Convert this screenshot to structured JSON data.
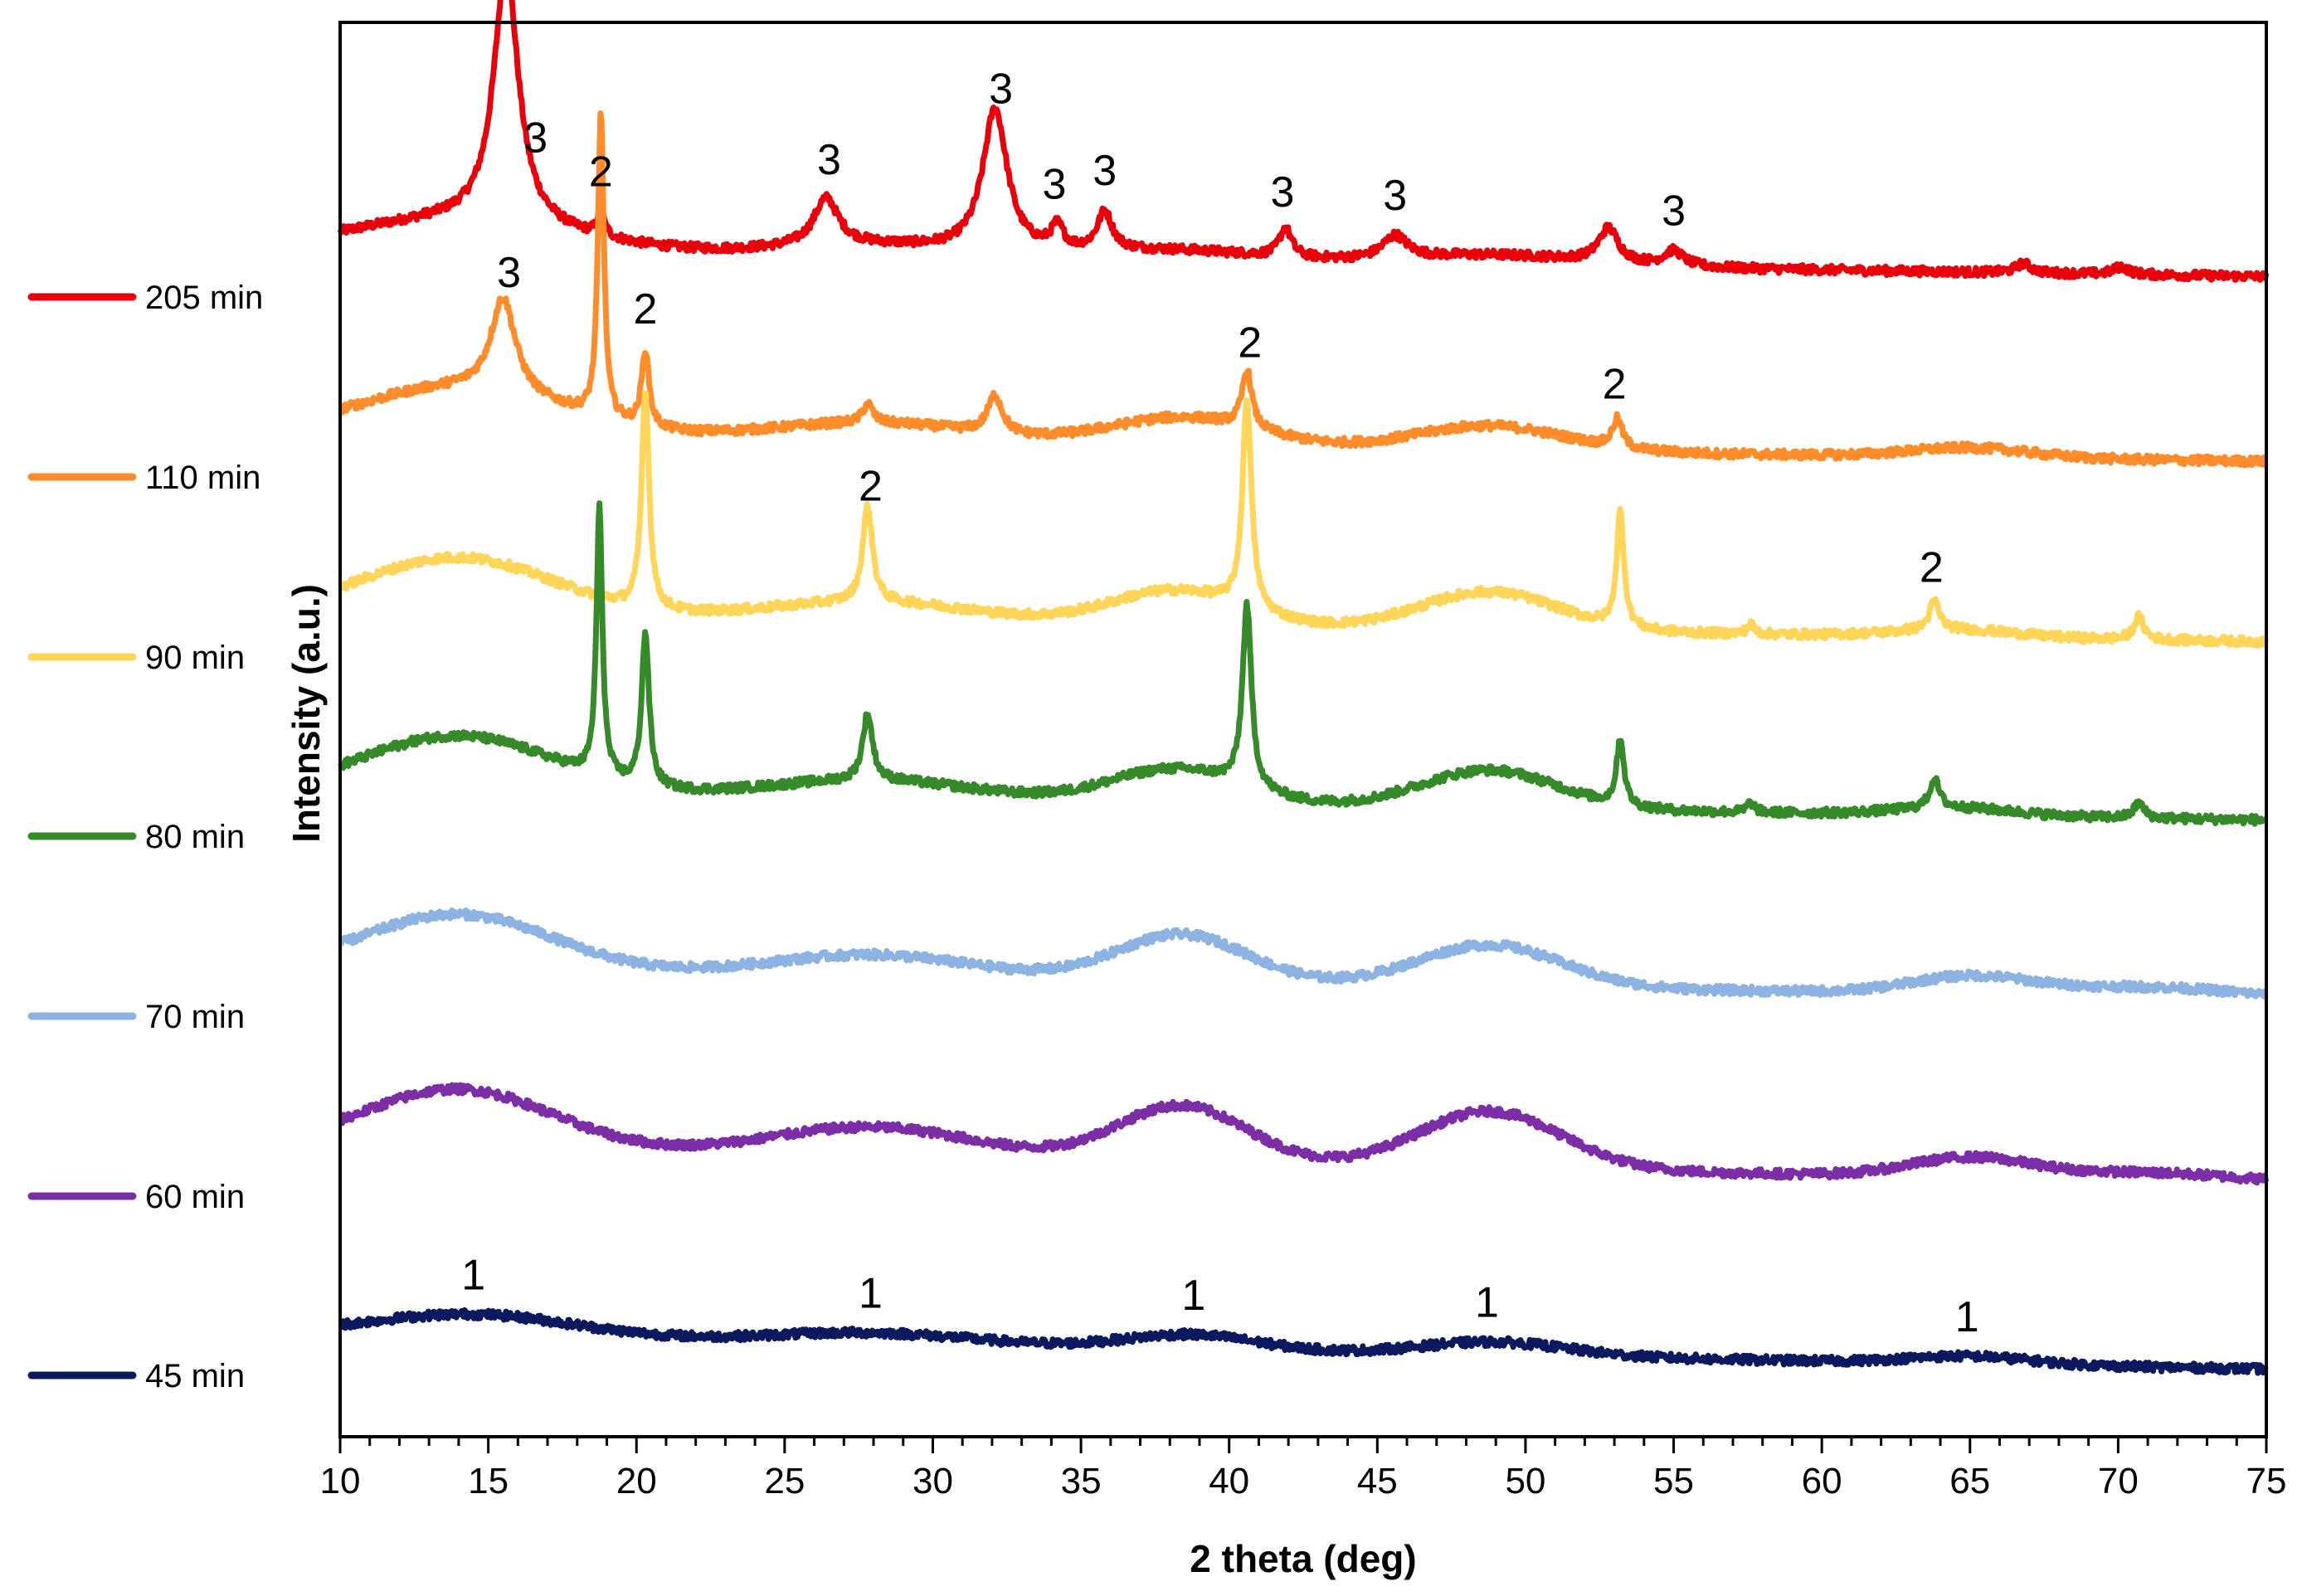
{
  "chart_data": {
    "type": "line",
    "xlabel": "2 theta (deg)",
    "ylabel": "Intensity (a.u.)",
    "xlim": [
      10,
      75
    ],
    "xticks": [
      10,
      15,
      20,
      25,
      30,
      35,
      40,
      45,
      50,
      55,
      60,
      65,
      70,
      75
    ],
    "grid": false,
    "legend_position": "left",
    "series": [
      {
        "name": "205 min",
        "color": "#e8000b",
        "start": 0.2,
        "end": 0.05,
        "humps": [
          [
            14,
            3.5,
            0.15
          ],
          [
            28,
            3,
            0.05
          ],
          [
            38,
            3,
            0.05
          ],
          [
            49,
            3,
            0.05
          ]
        ],
        "peaks": [
          [
            15.6,
            0.5,
            1.35
          ],
          [
            18.8,
            0.15,
            0.12
          ],
          [
            26.4,
            0.5,
            0.25
          ],
          [
            32.1,
            0.5,
            0.75
          ],
          [
            34.2,
            0.25,
            0.12
          ],
          [
            35.8,
            0.3,
            0.2
          ],
          [
            41.9,
            0.25,
            0.15
          ],
          [
            45.6,
            0.5,
            0.12
          ],
          [
            52.8,
            0.4,
            0.18
          ],
          [
            55,
            0.4,
            0.08
          ],
          [
            66.8,
            0.3,
            0.05
          ],
          [
            70.1,
            0.3,
            0.04
          ]
        ]
      },
      {
        "name": "110 min",
        "color": "#ff8c2a",
        "start": 0.2,
        "end": 0.06,
        "humps": [
          [
            14,
            3.5,
            0.25
          ],
          [
            28,
            3.5,
            0.1
          ],
          [
            38.5,
            2.5,
            0.15
          ],
          [
            48.8,
            2.5,
            0.13
          ],
          [
            65,
            2,
            0.05
          ]
        ],
        "peaks": [
          [
            15.5,
            0.5,
            0.5
          ],
          [
            18.8,
            0.12,
            1.6
          ],
          [
            20.3,
            0.15,
            0.4
          ],
          [
            27.8,
            0.2,
            0.1
          ],
          [
            32.1,
            0.3,
            0.2
          ],
          [
            40.6,
            0.2,
            0.3
          ],
          [
            53.1,
            0.2,
            0.15
          ]
        ]
      },
      {
        "name": "90 min",
        "color": "#ffd55a",
        "start": 0.2,
        "end": 0.05,
        "humps": [
          [
            14,
            3.2,
            0.3
          ],
          [
            28,
            3.5,
            0.1
          ],
          [
            38.2,
            2.2,
            0.18
          ],
          [
            48.8,
            2.3,
            0.2
          ],
          [
            64.5,
            2,
            0.04
          ]
        ],
        "peaks": [
          [
            20.3,
            0.15,
            1.15
          ],
          [
            27.8,
            0.2,
            0.5
          ],
          [
            40.6,
            0.18,
            1.1
          ],
          [
            53.2,
            0.15,
            0.6
          ],
          [
            57.6,
            0.15,
            0.05
          ],
          [
            63.8,
            0.2,
            0.15
          ],
          [
            70.7,
            0.2,
            0.12
          ]
        ]
      },
      {
        "name": "80 min",
        "color": "#378a2a",
        "start": 0.2,
        "end": 0.05,
        "humps": [
          [
            14,
            3.2,
            0.3
          ],
          [
            28,
            3.5,
            0.1
          ],
          [
            38.2,
            2.2,
            0.18
          ],
          [
            48.8,
            2.3,
            0.2
          ],
          [
            64.5,
            2,
            0.04
          ]
        ],
        "peaks": [
          [
            18.75,
            0.12,
            1.4
          ],
          [
            20.3,
            0.15,
            0.8
          ],
          [
            27.8,
            0.2,
            0.35
          ],
          [
            40.6,
            0.18,
            0.95
          ],
          [
            53.2,
            0.15,
            0.35
          ],
          [
            57.6,
            0.15,
            0.05
          ],
          [
            63.8,
            0.2,
            0.15
          ],
          [
            70.7,
            0.2,
            0.08
          ]
        ]
      },
      {
        "name": "70 min",
        "color": "#8db3e2",
        "start": 0.2,
        "end": 0.05,
        "humps": [
          [
            14,
            3.2,
            0.3
          ],
          [
            28,
            3.5,
            0.12
          ],
          [
            38.4,
            2.2,
            0.25
          ],
          [
            48.8,
            2.4,
            0.22
          ],
          [
            65,
            2,
            0.09
          ],
          [
            71,
            3,
            0.05
          ]
        ],
        "peaks": []
      },
      {
        "name": "60 min",
        "color": "#7b2ea6",
        "start": 0.2,
        "end": 0.02,
        "humps": [
          [
            14,
            3.2,
            0.32
          ],
          [
            28,
            3.5,
            0.16
          ],
          [
            38.4,
            2.2,
            0.3
          ],
          [
            48.8,
            2.4,
            0.3
          ],
          [
            65,
            2,
            0.1
          ],
          [
            71,
            3,
            0.04
          ]
        ],
        "peaks": []
      },
      {
        "name": "45 min",
        "color": "#0b1a5e",
        "start": 0.2,
        "end": 0.02,
        "humps": [
          [
            14.5,
            3.5,
            0.12
          ],
          [
            28,
            3.5,
            0.06
          ],
          [
            38.7,
            2.2,
            0.08
          ],
          [
            49,
            2.4,
            0.07
          ],
          [
            65,
            2,
            0.04
          ]
        ],
        "peaks": []
      }
    ],
    "annotations": [
      {
        "text": "3",
        "x": 16.6,
        "series": "205 min"
      },
      {
        "text": "2",
        "x": 18.8,
        "series": "205 min"
      },
      {
        "text": "3",
        "x": 26.5,
        "series": "205 min"
      },
      {
        "text": "3",
        "x": 32.3,
        "series": "205 min"
      },
      {
        "text": "3",
        "x": 34.1,
        "series": "205 min"
      },
      {
        "text": "3",
        "x": 35.8,
        "series": "205 min"
      },
      {
        "text": "3",
        "x": 41.8,
        "series": "205 min"
      },
      {
        "text": "3",
        "x": 45.6,
        "series": "205 min"
      },
      {
        "text": "3",
        "x": 55,
        "series": "205 min"
      },
      {
        "text": "3",
        "x": 15.7,
        "series": "110 min"
      },
      {
        "text": "2",
        "x": 20.3,
        "series": "110 min"
      },
      {
        "text": "2",
        "x": 40.7,
        "series": "110 min"
      },
      {
        "text": "2",
        "x": 53.0,
        "series": "110 min"
      },
      {
        "text": "2",
        "x": 27.9,
        "series": "90 min"
      },
      {
        "text": "2",
        "x": 63.7,
        "series": "90 min"
      },
      {
        "text": "1",
        "x": 14.5,
        "series": "45 min"
      },
      {
        "text": "1",
        "x": 27.9,
        "series": "45 min"
      },
      {
        "text": "1",
        "x": 38.8,
        "series": "45 min"
      },
      {
        "text": "1",
        "x": 48.7,
        "series": "45 min"
      },
      {
        "text": "1",
        "x": 64.9,
        "series": "45 min"
      }
    ]
  }
}
